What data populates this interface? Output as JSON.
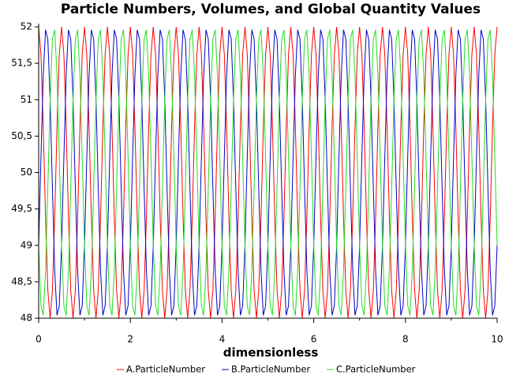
{
  "chart_data": {
    "type": "line",
    "title": "Particle Numbers, Volumes, and Global Quantity Values",
    "xlabel": "dimensionless",
    "legend": "bottom",
    "grid": false,
    "xlim": [
      0,
      10
    ],
    "xticks": [
      0,
      2,
      4,
      6,
      8,
      10
    ],
    "xminorticks": [
      1,
      3,
      5,
      7,
      9
    ],
    "ylim": [
      48,
      52
    ],
    "yticks": [
      48,
      {
        "value": 48.5,
        "label": "48,5"
      },
      49,
      {
        "value": 49.5,
        "label": "49,5"
      },
      50,
      {
        "value": 50.5,
        "label": "50,5"
      },
      51,
      {
        "value": 51.5,
        "label": "51,5"
      },
      52
    ],
    "x": [
      0,
      0.05,
      0.1,
      0.15,
      0.2,
      0.25,
      0.3,
      0.35,
      0.4,
      0.45,
      0.5,
      0.55,
      0.6,
      0.65,
      0.7,
      0.75,
      0.8,
      0.85,
      0.9,
      0.95,
      1,
      1.05,
      1.1,
      1.15,
      1.2,
      1.25,
      1.3,
      1.35,
      1.4,
      1.45,
      1.5,
      1.55,
      1.6,
      1.65,
      1.7,
      1.75,
      1.8,
      1.85,
      1.9,
      1.95,
      2,
      2.05,
      2.1,
      2.15,
      2.2,
      2.25,
      2.3,
      2.35,
      2.4,
      2.45,
      2.5,
      2.55,
      2.6,
      2.65,
      2.7,
      2.75,
      2.8,
      2.85,
      2.9,
      2.95,
      3,
      3.05,
      3.1,
      3.15,
      3.2,
      3.25,
      3.3,
      3.35,
      3.4,
      3.45,
      3.5,
      3.55,
      3.6,
      3.65,
      3.7,
      3.75,
      3.8,
      3.85,
      3.9,
      3.95,
      4,
      4.05,
      4.1,
      4.15,
      4.2,
      4.25,
      4.3,
      4.35,
      4.4,
      4.45,
      4.5,
      4.55,
      4.6,
      4.65,
      4.7,
      4.75,
      4.8,
      4.85,
      4.9,
      4.95,
      5,
      5.05,
      5.1,
      5.15,
      5.2,
      5.25,
      5.3,
      5.35,
      5.4,
      5.45,
      5.5,
      5.55,
      5.6,
      5.65,
      5.7,
      5.75,
      5.8,
      5.85,
      5.9,
      5.95,
      6,
      6.05,
      6.1,
      6.15,
      6.2,
      6.25,
      6.3,
      6.35,
      6.4,
      6.45,
      6.5,
      6.55,
      6.6,
      6.65,
      6.7,
      6.75,
      6.8,
      6.85,
      6.9,
      6.95,
      7,
      7.05,
      7.1,
      7.15,
      7.2,
      7.25,
      7.3,
      7.35,
      7.4,
      7.45,
      7.5,
      7.55,
      7.6,
      7.65,
      7.7,
      7.75,
      7.8,
      7.85,
      7.9,
      7.95,
      8,
      8.05,
      8.1,
      8.15,
      8.2,
      8.25,
      8.3,
      8.35,
      8.4,
      8.45,
      8.5,
      8.55,
      8.6,
      8.65,
      8.7,
      8.75,
      8.8,
      8.85,
      8.9,
      8.95,
      9,
      9.05,
      9.1,
      9.15,
      9.2,
      9.25,
      9.3,
      9.35,
      9.4,
      9.45,
      9.5,
      9.55,
      9.6,
      9.65,
      9.7,
      9.75,
      9.8,
      9.85,
      9.9,
      9.95,
      10
    ],
    "series": [
      {
        "name": "A.ParticleNumber",
        "color": "#ff0000",
        "values": [
          52,
          51.62,
          50.62,
          49.38,
          48.38,
          48,
          48.38,
          49.38,
          50.62,
          51.62,
          52,
          51.62,
          50.62,
          49.38,
          48.38,
          48,
          48.38,
          49.38,
          50.62,
          51.62,
          52,
          51.62,
          50.62,
          49.38,
          48.38,
          48,
          48.38,
          49.38,
          50.62,
          51.62,
          52,
          51.62,
          50.62,
          49.38,
          48.38,
          48,
          48.38,
          49.38,
          50.62,
          51.62,
          52,
          51.62,
          50.62,
          49.38,
          48.38,
          48,
          48.38,
          49.38,
          50.62,
          51.62,
          52,
          51.62,
          50.62,
          49.38,
          48.38,
          48,
          48.38,
          49.38,
          50.62,
          51.62,
          52,
          51.62,
          50.62,
          49.38,
          48.38,
          48,
          48.38,
          49.38,
          50.62,
          51.62,
          52,
          51.62,
          50.62,
          49.38,
          48.38,
          48,
          48.38,
          49.38,
          50.62,
          51.62,
          52,
          51.62,
          50.62,
          49.38,
          48.38,
          48,
          48.38,
          49.38,
          50.62,
          51.62,
          52,
          51.62,
          50.62,
          49.38,
          48.38,
          48,
          48.38,
          49.38,
          50.62,
          51.62,
          52,
          51.62,
          50.62,
          49.38,
          48.38,
          48,
          48.38,
          49.38,
          50.62,
          51.62,
          52,
          51.62,
          50.62,
          49.38,
          48.38,
          48,
          48.38,
          49.38,
          50.62,
          51.62,
          52,
          51.62,
          50.62,
          49.38,
          48.38,
          48,
          48.38,
          49.38,
          50.62,
          51.62,
          52,
          51.62,
          50.62,
          49.38,
          48.38,
          48,
          48.38,
          49.38,
          50.62,
          51.62,
          52,
          51.62,
          50.62,
          49.38,
          48.38,
          48,
          48.38,
          49.38,
          50.62,
          51.62,
          52,
          51.62,
          50.62,
          49.38,
          48.38,
          48,
          48.38,
          49.38,
          50.62,
          51.62,
          52,
          51.62,
          50.62,
          49.38,
          48.38,
          48,
          48.38,
          49.38,
          50.62,
          51.62,
          52,
          51.62,
          50.62,
          49.38,
          48.38,
          48,
          48.38,
          49.38,
          50.62,
          51.62,
          52,
          51.62,
          50.62,
          49.38,
          48.38,
          48,
          48.38,
          49.38,
          50.62,
          51.62,
          52,
          51.62,
          50.62,
          49.38,
          48.38,
          48,
          48.38,
          49.38,
          50.62,
          51.62,
          52
        ]
      },
      {
        "name": "B.ParticleNumber",
        "color": "#0000c8",
        "values": [
          49,
          50.21,
          51.34,
          51.96,
          51.83,
          51,
          49.79,
          48.66,
          48.04,
          48.17,
          49,
          50.21,
          51.34,
          51.96,
          51.83,
          51,
          49.79,
          48.66,
          48.04,
          48.17,
          49,
          50.21,
          51.34,
          51.96,
          51.83,
          51,
          49.79,
          48.66,
          48.04,
          48.17,
          49,
          50.21,
          51.34,
          51.96,
          51.83,
          51,
          49.79,
          48.66,
          48.04,
          48.17,
          49,
          50.21,
          51.34,
          51.96,
          51.83,
          51,
          49.79,
          48.66,
          48.04,
          48.17,
          49,
          50.21,
          51.34,
          51.96,
          51.83,
          51,
          49.79,
          48.66,
          48.04,
          48.17,
          49,
          50.21,
          51.34,
          51.96,
          51.83,
          51,
          49.79,
          48.66,
          48.04,
          48.17,
          49,
          50.21,
          51.34,
          51.96,
          51.83,
          51,
          49.79,
          48.66,
          48.04,
          48.17,
          49,
          50.21,
          51.34,
          51.96,
          51.83,
          51,
          49.79,
          48.66,
          48.04,
          48.17,
          49,
          50.21,
          51.34,
          51.96,
          51.83,
          51,
          49.79,
          48.66,
          48.04,
          48.17,
          49,
          50.21,
          51.34,
          51.96,
          51.83,
          51,
          49.79,
          48.66,
          48.04,
          48.17,
          49,
          50.21,
          51.34,
          51.96,
          51.83,
          51,
          49.79,
          48.66,
          48.04,
          48.17,
          49,
          50.21,
          51.34,
          51.96,
          51.83,
          51,
          49.79,
          48.66,
          48.04,
          48.17,
          49,
          50.21,
          51.34,
          51.96,
          51.83,
          51,
          49.79,
          48.66,
          48.04,
          48.17,
          49,
          50.21,
          51.34,
          51.96,
          51.83,
          51,
          49.79,
          48.66,
          48.04,
          48.17,
          49,
          50.21,
          51.34,
          51.96,
          51.83,
          51,
          49.79,
          48.66,
          48.04,
          48.17,
          49,
          50.21,
          51.34,
          51.96,
          51.83,
          51,
          49.79,
          48.66,
          48.04,
          48.17,
          49,
          50.21,
          51.34,
          51.96,
          51.83,
          51,
          49.79,
          48.66,
          48.04,
          48.17,
          49,
          50.21,
          51.34,
          51.96,
          51.83,
          51,
          49.79,
          48.66,
          48.04,
          48.17,
          49,
          50.21,
          51.34,
          51.96,
          51.83,
          51,
          49.79,
          48.66,
          48.04,
          48.17,
          49
        ]
      },
      {
        "name": "C.ParticleNumber",
        "color": "#22dd22",
        "values": [
          49,
          48.17,
          48.04,
          48.66,
          49.79,
          51,
          51.83,
          51.96,
          51.34,
          50.21,
          49,
          48.17,
          48.04,
          48.66,
          49.79,
          51,
          51.83,
          51.96,
          51.34,
          50.21,
          49,
          48.17,
          48.04,
          48.66,
          49.79,
          51,
          51.83,
          51.96,
          51.34,
          50.21,
          49,
          48.17,
          48.04,
          48.66,
          49.79,
          51,
          51.83,
          51.96,
          51.34,
          50.21,
          49,
          48.17,
          48.04,
          48.66,
          49.79,
          51,
          51.83,
          51.96,
          51.34,
          50.21,
          49,
          48.17,
          48.04,
          48.66,
          49.79,
          51,
          51.83,
          51.96,
          51.34,
          50.21,
          49,
          48.17,
          48.04,
          48.66,
          49.79,
          51,
          51.83,
          51.96,
          51.34,
          50.21,
          49,
          48.17,
          48.04,
          48.66,
          49.79,
          51,
          51.83,
          51.96,
          51.34,
          50.21,
          49,
          48.17,
          48.04,
          48.66,
          49.79,
          51,
          51.83,
          51.96,
          51.34,
          50.21,
          49,
          48.17,
          48.04,
          48.66,
          49.79,
          51,
          51.83,
          51.96,
          51.34,
          50.21,
          49,
          48.17,
          48.04,
          48.66,
          49.79,
          51,
          51.83,
          51.96,
          51.34,
          50.21,
          49,
          48.17,
          48.04,
          48.66,
          49.79,
          51,
          51.83,
          51.96,
          51.34,
          50.21,
          49,
          48.17,
          48.04,
          48.66,
          49.79,
          51,
          51.83,
          51.96,
          51.34,
          50.21,
          49,
          48.17,
          48.04,
          48.66,
          49.79,
          51,
          51.83,
          51.96,
          51.34,
          50.21,
          49,
          48.17,
          48.04,
          48.66,
          49.79,
          51,
          51.83,
          51.96,
          51.34,
          50.21,
          49,
          48.17,
          48.04,
          48.66,
          49.79,
          51,
          51.83,
          51.96,
          51.34,
          50.21,
          49,
          48.17,
          48.04,
          48.66,
          49.79,
          51,
          51.83,
          51.96,
          51.34,
          50.21,
          49,
          48.17,
          48.04,
          48.66,
          49.79,
          51,
          51.83,
          51.96,
          51.34,
          50.21,
          49,
          48.17,
          48.04,
          48.66,
          49.79,
          51,
          51.83,
          51.96,
          51.34,
          50.21,
          49,
          48.17,
          48.04,
          48.66,
          49.79,
          51,
          51.83,
          51.96,
          51.34,
          50.21,
          49
        ]
      }
    ]
  }
}
